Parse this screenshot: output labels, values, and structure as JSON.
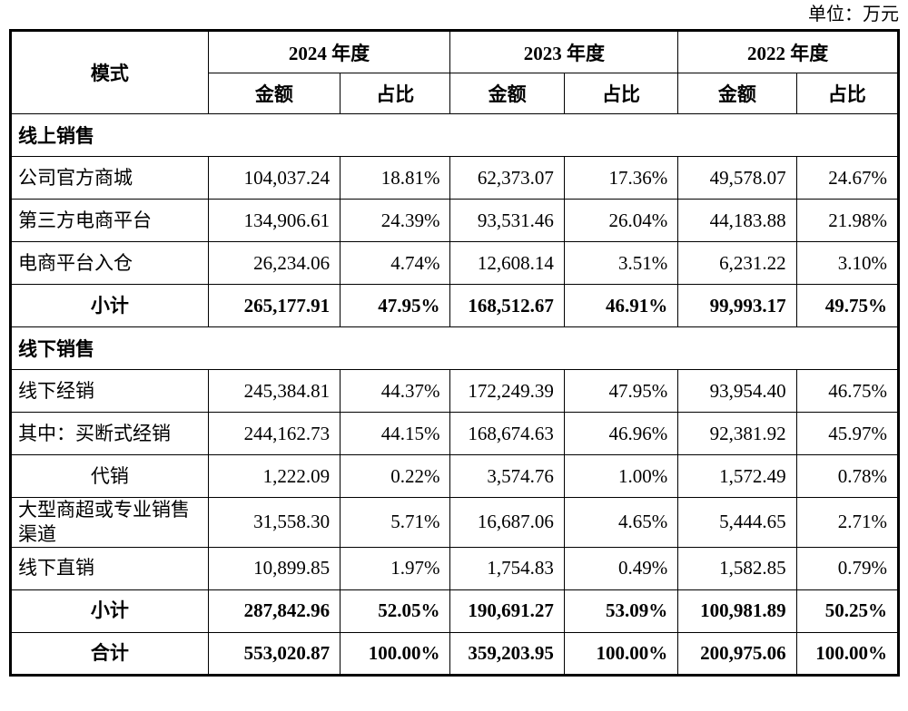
{
  "unit_label": "单位：万元",
  "table": {
    "mode_header": "模式",
    "year_headers": [
      "2024 年度",
      "2023 年度",
      "2022 年度"
    ],
    "sub_headers": {
      "amount": "金额",
      "ratio": "占比"
    },
    "rows": [
      {
        "type": "section",
        "label": "线上销售"
      },
      {
        "type": "data",
        "label": "公司官方商城",
        "values": [
          "104,037.24",
          "18.81%",
          "62,373.07",
          "17.36%",
          "49,578.07",
          "24.67%"
        ]
      },
      {
        "type": "data",
        "label": "第三方电商平台",
        "values": [
          "134,906.61",
          "24.39%",
          "93,531.46",
          "26.04%",
          "44,183.88",
          "21.98%"
        ]
      },
      {
        "type": "data",
        "label": "电商平台入仓",
        "values": [
          "26,234.06",
          "4.74%",
          "12,608.14",
          "3.51%",
          "6,231.22",
          "3.10%"
        ]
      },
      {
        "type": "subtotal",
        "label": "小计",
        "values": [
          "265,177.91",
          "47.95%",
          "168,512.67",
          "46.91%",
          "99,993.17",
          "49.75%"
        ]
      },
      {
        "type": "section",
        "label": "线下销售"
      },
      {
        "type": "data",
        "label": "线下经销",
        "values": [
          "245,384.81",
          "44.37%",
          "172,249.39",
          "47.95%",
          "93,954.40",
          "46.75%"
        ]
      },
      {
        "type": "data",
        "label": "其中：买断式经销",
        "values": [
          "244,162.73",
          "44.15%",
          "168,674.63",
          "46.96%",
          "92,381.92",
          "45.97%"
        ]
      },
      {
        "type": "data",
        "label": "代销",
        "label_align": "center",
        "values": [
          "1,222.09",
          "0.22%",
          "3,574.76",
          "1.00%",
          "1,572.49",
          "0.78%"
        ]
      },
      {
        "type": "data",
        "label": "大型商超或专业销售渠道",
        "values": [
          "31,558.30",
          "5.71%",
          "16,687.06",
          "4.65%",
          "5,444.65",
          "2.71%"
        ]
      },
      {
        "type": "data",
        "label": "线下直销",
        "values": [
          "10,899.85",
          "1.97%",
          "1,754.83",
          "0.49%",
          "1,582.85",
          "0.79%"
        ]
      },
      {
        "type": "subtotal",
        "label": "小计",
        "values": [
          "287,842.96",
          "52.05%",
          "190,691.27",
          "53.09%",
          "100,981.89",
          "50.25%"
        ]
      },
      {
        "type": "total",
        "label": "合计",
        "values": [
          "553,020.87",
          "100.00%",
          "359,203.95",
          "100.00%",
          "200,975.06",
          "100.00%"
        ]
      }
    ]
  }
}
